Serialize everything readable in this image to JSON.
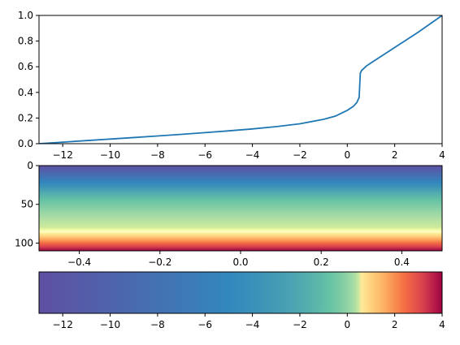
{
  "colors": {
    "line": "#1f77b4",
    "spectral_r": [
      "#5e4fa2",
      "#3288bd",
      "#66c2a5",
      "#abdda4",
      "#e6f598",
      "#ffffbf",
      "#fee08b",
      "#fdae61",
      "#f46d43",
      "#d53e4f",
      "#9e0142"
    ]
  },
  "chart_data": [
    {
      "type": "line",
      "title": "",
      "xlabel": "",
      "ylabel": "",
      "xlim": [
        -13,
        4
      ],
      "ylim": [
        0,
        1
      ],
      "x_ticks": [
        "−12",
        "−10",
        "−8",
        "−6",
        "−4",
        "−2",
        "0",
        "2",
        "4"
      ],
      "x_tick_values": [
        -12,
        -10,
        -8,
        -6,
        -4,
        -2,
        0,
        2,
        4
      ],
      "y_ticks": [
        "0.0",
        "0.2",
        "0.4",
        "0.6",
        "0.8",
        "1.0"
      ],
      "y_tick_values": [
        0,
        0.2,
        0.4,
        0.6,
        0.8,
        1.0
      ],
      "grid": false,
      "series": [
        {
          "x": [
            -13,
            -12,
            -11,
            -10,
            -9,
            -8,
            -7,
            -6,
            -5,
            -4,
            -3,
            -2,
            -1,
            -0.5,
            0,
            0.25,
            0.4,
            0.5,
            0.55,
            0.6,
            0.8,
            1,
            1.5,
            2,
            2.5,
            3,
            3.5,
            4
          ],
          "y": [
            0,
            0.012,
            0.024,
            0.036,
            0.048,
            0.06,
            0.073,
            0.086,
            0.1,
            0.115,
            0.133,
            0.155,
            0.19,
            0.215,
            0.26,
            0.29,
            0.32,
            0.36,
            0.55,
            0.57,
            0.605,
            0.63,
            0.69,
            0.75,
            0.81,
            0.87,
            0.935,
            1.0
          ]
        }
      ]
    },
    {
      "type": "heatmap",
      "title": "",
      "xlim": [
        -0.5,
        0.5
      ],
      "ylim": [
        110,
        0
      ],
      "x_ticks": [
        "−0.4",
        "−0.2",
        "0.0",
        "0.2",
        "0.4"
      ],
      "x_tick_values": [
        -0.4,
        -0.2,
        0,
        0.2,
        0.4
      ],
      "y_ticks": [
        "0",
        "50",
        "100"
      ],
      "y_tick_values": [
        0,
        50,
        100
      ],
      "colormap": "Spectral_r",
      "value_range": [
        -13,
        4
      ],
      "rows": 110,
      "row_values_note_rule": "value increases with row index following the line curve inverse"
    },
    {
      "type": "colorbar",
      "title": "",
      "xlim": [
        -13,
        4
      ],
      "x_ticks": [
        "−12",
        "−10",
        "−8",
        "−6",
        "−4",
        "−2",
        "0",
        "2",
        "4"
      ],
      "x_tick_values": [
        -12,
        -10,
        -8,
        -6,
        -4,
        -2,
        0,
        2,
        4
      ],
      "colormap": "Spectral_r",
      "norm_breakpoint": [
        0.5,
        0.55
      ]
    }
  ]
}
